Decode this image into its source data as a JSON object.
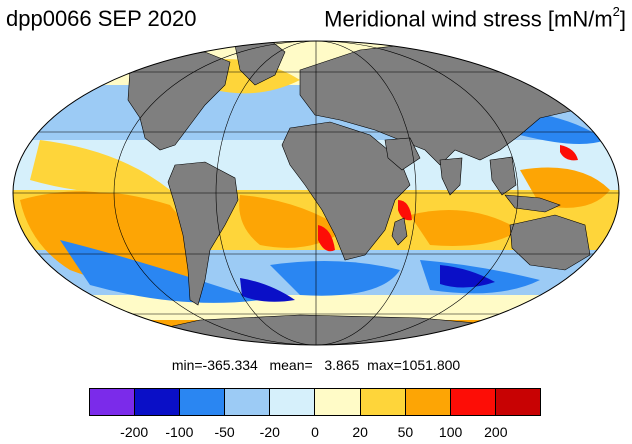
{
  "title": "dpp0066 SEP 2020",
  "subtitle_main": "Meridional wind stress [mN/m",
  "subtitle_exp": "2",
  "subtitle_end": "]",
  "stats": "min=-365.334   mean=   3.865  max=1051.800",
  "colorbar": {
    "colors": [
      "#7b2bea",
      "#0a0fc7",
      "#2a86f2",
      "#9ccbf5",
      "#d6f0fb",
      "#fffbc7",
      "#fed53a",
      "#fda505",
      "#fd0d06",
      "#c80203"
    ],
    "labels": [
      "-200",
      "-100",
      "-50",
      "-20",
      "0",
      "20",
      "50",
      "100",
      "200"
    ]
  },
  "map": {
    "projection": "mollweide",
    "land_color": "#7f7f7f",
    "grid": true,
    "variable": "meridional wind stress"
  }
}
